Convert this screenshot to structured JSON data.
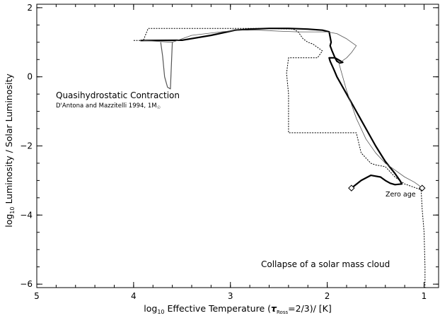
{
  "chart_data": {
    "type": "line",
    "xlabel": "log₁₀ Effective Temperature (τRoss=2/3)/ [K]",
    "xlabel_parts": {
      "prefix": "log",
      "prefix_sub": "10",
      "main": " Effective Temperature (",
      "tau": "τ",
      "tau_sub": "Ross",
      "suffix": "=2/3)/ [K]"
    },
    "ylabel": "log₁₀ Luminosity / Solar Luminosity",
    "ylabel_parts": {
      "prefix": "log",
      "prefix_sub": "10",
      "main": " Luminosity / Solar Luminosity"
    },
    "xlim": [
      5.0,
      0.85
    ],
    "ylim": [
      -6.1,
      2.1
    ],
    "x_ticks": [
      5,
      4,
      3,
      2,
      1
    ],
    "x_tick_labels": [
      "5",
      "4",
      "3",
      "2",
      "1"
    ],
    "y_ticks": [
      2,
      0,
      -2,
      -4,
      -6
    ],
    "y_tick_labels": [
      "2",
      "0",
      "−2",
      "−4",
      "−6"
    ],
    "grid": false,
    "legend": "none",
    "annotations": {
      "quasi_title": "Quasihydrostatic Contraction",
      "quasi_ref_main": "D'Antona and Mazzitelli 1994, 1M",
      "quasi_ref_sub": "☉",
      "zero_age": "Zero age",
      "collapse": "Collapse of a solar mass cloud"
    },
    "series": [
      {
        "style": "thick-solid",
        "x": [
          3.93,
          3.5,
          3.2,
          2.95,
          2.8,
          2.6,
          2.4,
          2.2,
          2.05,
          1.98,
          1.96,
          1.97,
          1.95,
          1.92,
          1.9,
          1.87,
          1.84,
          1.92,
          1.98,
          1.97,
          1.93,
          1.9,
          1.8,
          1.7,
          1.6,
          1.5,
          1.4,
          1.3,
          1.25,
          1.23,
          1.3,
          1.35,
          1.4,
          1.45,
          1.55,
          1.65,
          1.75
        ],
        "y": [
          1.05,
          1.06,
          1.2,
          1.35,
          1.38,
          1.4,
          1.4,
          1.38,
          1.35,
          1.3,
          1.0,
          0.9,
          0.75,
          0.55,
          0.45,
          0.4,
          0.42,
          0.55,
          0.55,
          0.45,
          0.2,
          0.0,
          -0.5,
          -1.0,
          -1.5,
          -2.0,
          -2.45,
          -2.8,
          -3.0,
          -3.1,
          -3.12,
          -3.08,
          -3.0,
          -2.9,
          -2.85,
          -3.0,
          -3.22
        ],
        "branch": {
          "x": [
            3.72,
            3.7,
            3.68,
            3.65,
            3.62,
            3.6
          ],
          "y": [
            1.0,
            0.6,
            0.0,
            -0.3,
            -0.35,
            1.0
          ]
        }
      },
      {
        "style": "thin-solid",
        "x": [
          3.9,
          3.6,
          3.4,
          3.1,
          2.9,
          2.7,
          2.5,
          2.3,
          2.1,
          2.0,
          1.9,
          1.8,
          1.7,
          1.75,
          1.8,
          1.85,
          1.88,
          1.8,
          1.7,
          1.6,
          1.5,
          1.4,
          1.3,
          1.2,
          1.1,
          1.05,
          1.03
        ],
        "y": [
          1.05,
          1.0,
          1.2,
          1.3,
          1.35,
          1.35,
          1.32,
          1.3,
          1.3,
          1.3,
          1.25,
          1.1,
          0.9,
          0.7,
          0.55,
          0.45,
          0.4,
          -0.4,
          -1.2,
          -1.8,
          -2.2,
          -2.5,
          -2.7,
          -2.9,
          -3.05,
          -3.15,
          -3.22
        ]
      },
      {
        "style": "dotted",
        "x": [
          4.0,
          3.9,
          3.85,
          3.7,
          3.1,
          2.6,
          2.35,
          2.3,
          2.25,
          2.2,
          2.15,
          2.05,
          2.1,
          2.4,
          2.42,
          2.4,
          2.4,
          2.3,
          2.1,
          2.0,
          1.8,
          1.7,
          1.65,
          1.55,
          1.5,
          1.4,
          1.3,
          1.2,
          1.1,
          1.05,
          1.03,
          1.02,
          1.0,
          0.99,
          0.99
        ],
        "y": [
          1.05,
          1.05,
          1.4,
          1.4,
          1.4,
          1.4,
          1.38,
          1.3,
          1.1,
          1.0,
          0.95,
          0.75,
          0.55,
          0.55,
          0.1,
          -0.5,
          -1.62,
          -1.62,
          -1.62,
          -1.62,
          -1.62,
          -1.62,
          -2.2,
          -2.5,
          -2.55,
          -2.6,
          -2.9,
          -3.1,
          -3.2,
          -3.25,
          -3.3,
          -3.8,
          -4.5,
          -5.5,
          -6.1
        ]
      }
    ],
    "markers": {
      "shape": "diamond",
      "x": [
        1.75,
        1.02
      ],
      "y": [
        -3.22,
        -3.22
      ]
    }
  }
}
